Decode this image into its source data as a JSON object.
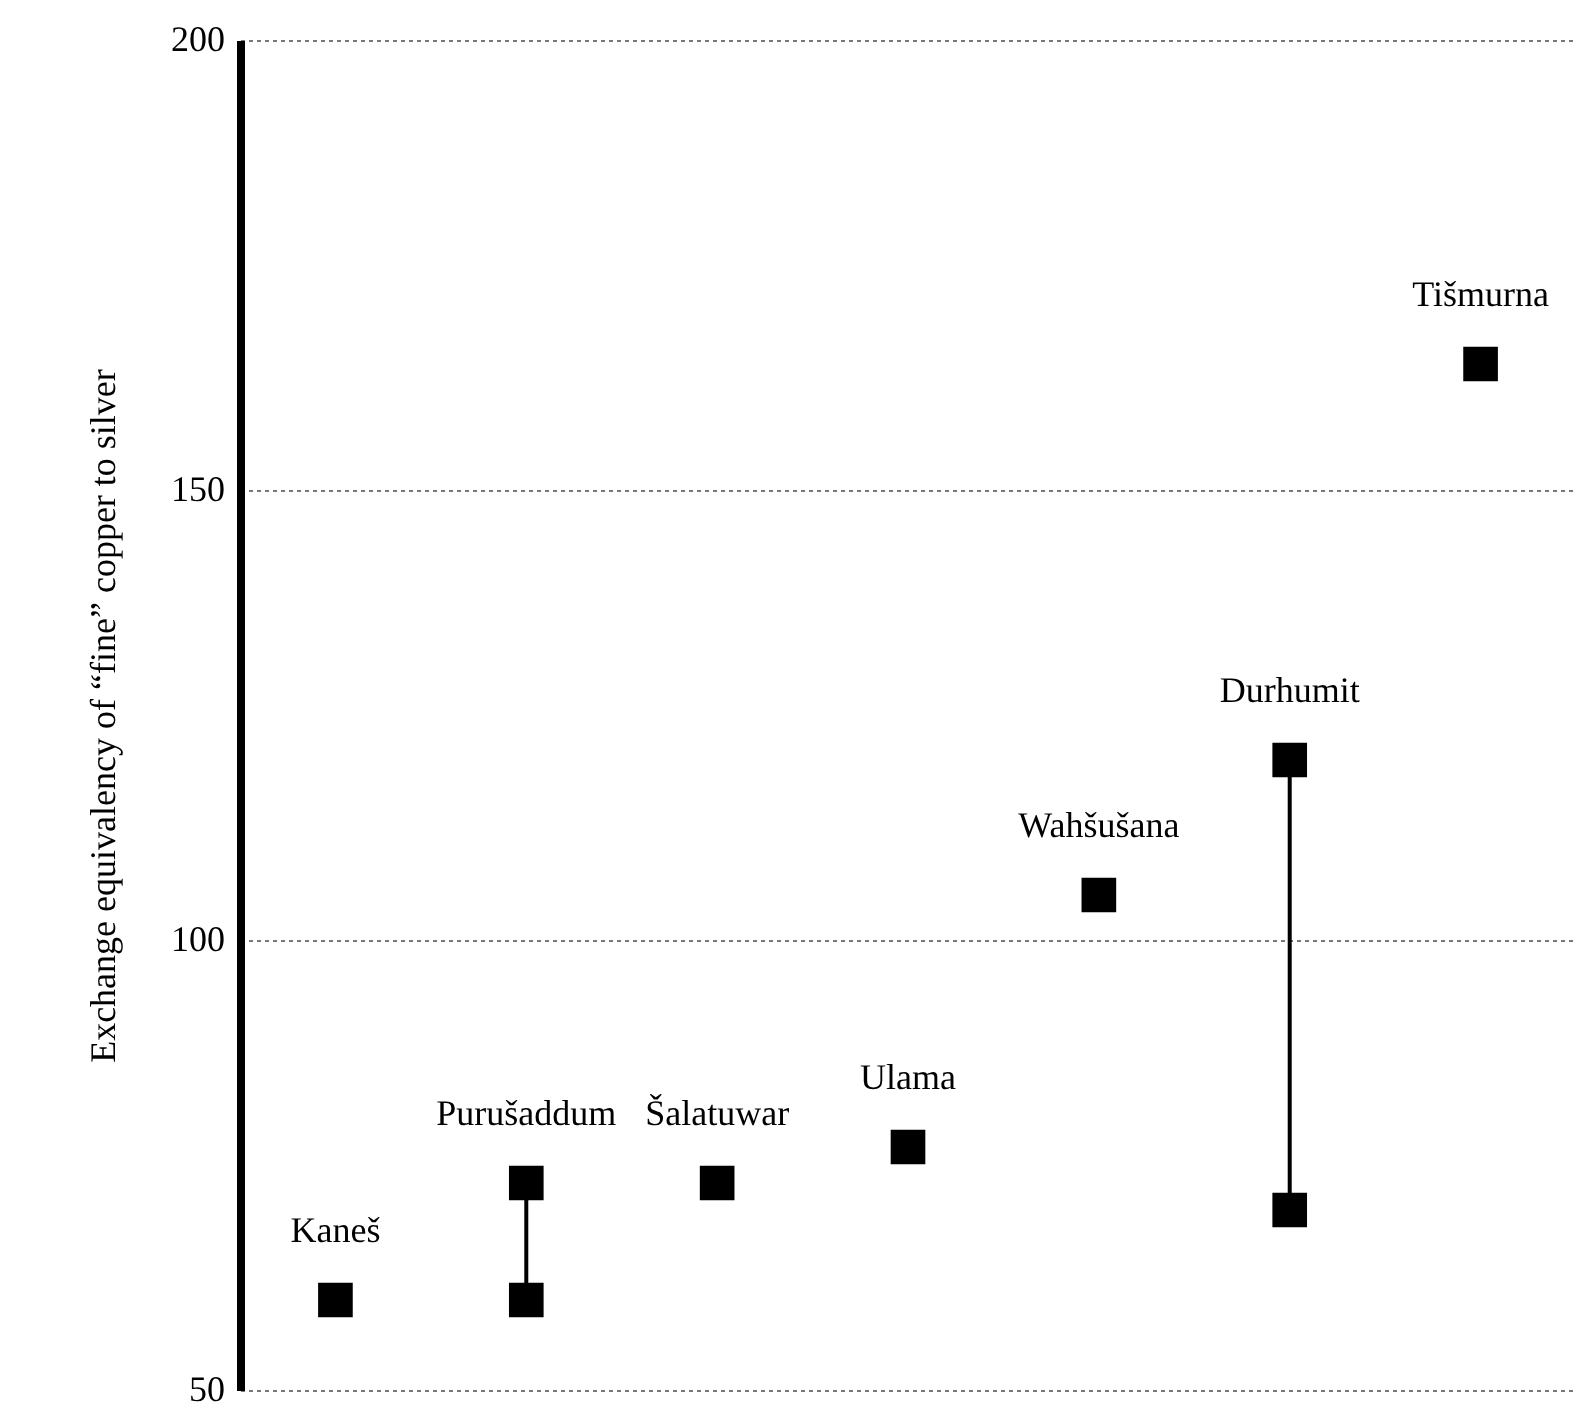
{
  "chart_data": {
    "type": "scatter",
    "ylabel": "Exchange equivalency of “fine” copper to silver",
    "categories": [
      "Kaneš",
      "Purušaddum",
      "Šalatuwar",
      "Ulama",
      "Wahšušana",
      "Durhumit",
      "Tišmurna"
    ],
    "series": [
      {
        "color": "#000000",
        "values": [
          60,
          null,
          73,
          77,
          105,
          null,
          164
        ]
      },
      {
        "type": "line",
        "color": "#000000",
        "x": [
          "Purušaddum",
          "Purušaddum"
        ],
        "values": [
          60,
          73
        ]
      },
      {
        "type": "line",
        "color": "#000000",
        "x": [
          "Durhumit",
          "Durhumit"
        ],
        "values": [
          70,
          120
        ]
      }
    ],
    "ylim": [
      50,
      200
    ],
    "yticks": [
      50,
      100,
      150,
      200
    ],
    "grid": "y",
    "marker": "square",
    "tick_labels": "y"
  }
}
